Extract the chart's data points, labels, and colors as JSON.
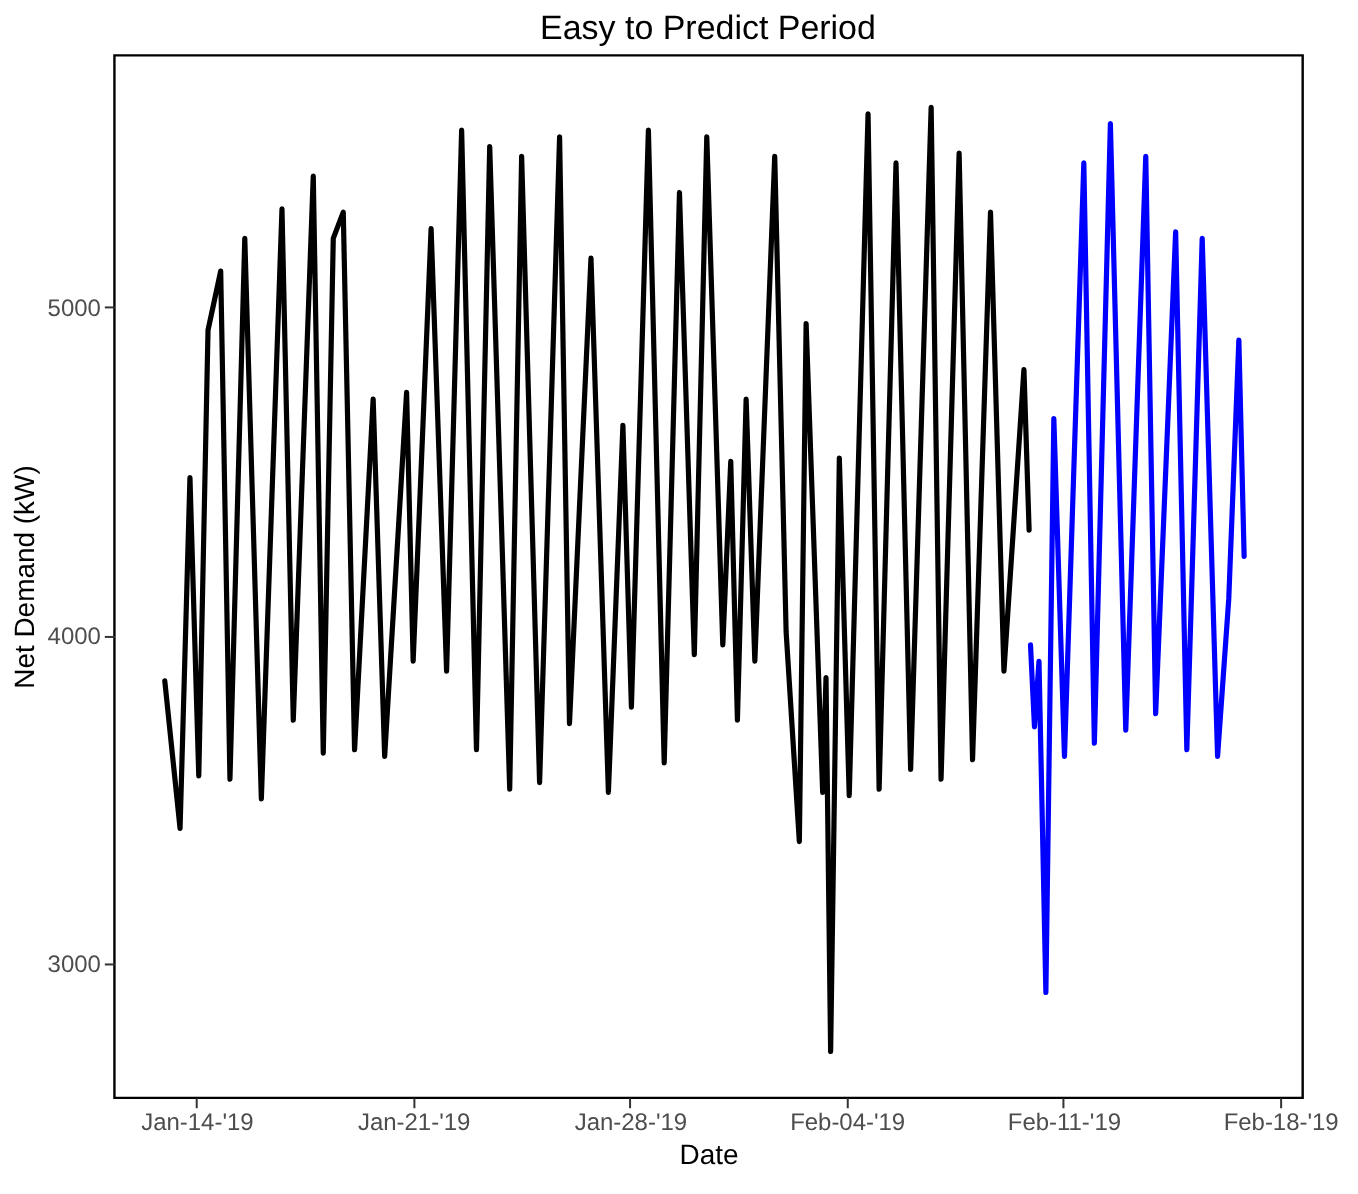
{
  "chart_data": {
    "type": "line",
    "title": "Easy to Predict Period",
    "xlabel": "Date",
    "ylabel": "Net Demand (kW)",
    "xlim": [
      "2019-01-11T08:00",
      "2019-02-18T17:00"
    ],
    "xticks": [
      {
        "value": "2019-01-14",
        "label": "Jan-14-'19"
      },
      {
        "value": "2019-01-21",
        "label": "Jan-21-'19"
      },
      {
        "value": "2019-01-28",
        "label": "Jan-28-'19"
      },
      {
        "value": "2019-02-04",
        "label": "Feb-04-'19"
      },
      {
        "value": "2019-02-11",
        "label": "Feb-11-'19"
      },
      {
        "value": "2019-02-18",
        "label": "Feb-18-'19"
      }
    ],
    "ylim": [
      2590,
      5770
    ],
    "yticks": [
      3000,
      4000,
      5000
    ],
    "grid": false,
    "legend": false,
    "line_style": "solid",
    "marker": "none",
    "series": [
      {
        "color": "#000000",
        "x": [
          "2019-01-12T23:30",
          "2019-01-13T11:20",
          "2019-01-13T19:00",
          "2019-01-14T01:50",
          "2019-01-14T09:00",
          "2019-01-14T18:50",
          "2019-01-15T02:00",
          "2019-01-15T13:30",
          "2019-01-16T02:20",
          "2019-01-16T18:20",
          "2019-01-17T03:05",
          "2019-01-17T18:35",
          "2019-01-18T02:20",
          "2019-01-18T10:05",
          "2019-01-18T17:50",
          "2019-01-19T02:35",
          "2019-01-19T17:00",
          "2019-01-20T01:55",
          "2019-01-20T18:55",
          "2019-01-21T00:00",
          "2019-01-21T13:55",
          "2019-01-22T01:55",
          "2019-01-22T13:35",
          "2019-01-23T01:05",
          "2019-01-23T11:20",
          "2019-01-24T02:50",
          "2019-01-24T12:05",
          "2019-01-25T02:00",
          "2019-01-25T17:30",
          "2019-01-26T01:10",
          "2019-01-26T17:50",
          "2019-01-27T07:20",
          "2019-01-27T18:35",
          "2019-01-28T01:10",
          "2019-01-28T14:20",
          "2019-01-29T02:35",
          "2019-01-29T14:25",
          "2019-01-30T01:55",
          "2019-01-30T11:35",
          "2019-01-31T00:00",
          "2019-01-31T06:10",
          "2019-01-31T11:20",
          "2019-01-31T18:05",
          "2019-02-01T00:50",
          "2019-02-01T16:15",
          "2019-02-02T01:05",
          "2019-02-02T11:20",
          "2019-02-02T16:35",
          "2019-02-03T05:25",
          "2019-02-03T08:00",
          "2019-02-03T11:35",
          "2019-02-03T18:20",
          "2019-02-04T02:00",
          "2019-02-04T16:35",
          "2019-02-05T01:10",
          "2019-02-05T14:15",
          "2019-02-06T01:35",
          "2019-02-06T17:30",
          "2019-02-07T01:10",
          "2019-02-07T15:10",
          "2019-02-08T01:35",
          "2019-02-08T15:30",
          "2019-02-09T01:55",
          "2019-02-09T17:25",
          "2019-02-09T21:25"
        ],
        "values": [
          3860,
          3410,
          4480,
          3570,
          4930,
          5110,
          3560,
          5210,
          3500,
          5300,
          3740,
          5400,
          3640,
          5210,
          5290,
          3650,
          4720,
          3630,
          4740,
          3920,
          5240,
          3890,
          5540,
          3650,
          5490,
          3530,
          5460,
          3550,
          5520,
          3730,
          5150,
          3520,
          4640,
          3780,
          5540,
          3610,
          5350,
          3940,
          5520,
          3970,
          4530,
          3740,
          4720,
          3920,
          5460,
          4010,
          3370,
          4950,
          3520,
          3870,
          2730,
          4540,
          3510,
          5590,
          3530,
          5440,
          3590,
          5610,
          3560,
          5470,
          3620,
          5290,
          3890,
          4810,
          4320
        ]
      },
      {
        "color": "#0000ff",
        "x": [
          "2019-02-09T22:30",
          "2019-02-10T01:35",
          "2019-02-10T05:05",
          "2019-02-10T10:25",
          "2019-02-10T16:35",
          "2019-02-11T00:50",
          "2019-02-11T15:50",
          "2019-02-12T00:00",
          "2019-02-12T12:25",
          "2019-02-13T00:20",
          "2019-02-13T15:50",
          "2019-02-13T23:30",
          "2019-02-14T15:00",
          "2019-02-14T23:40",
          "2019-02-15T11:35",
          "2019-02-15T23:30",
          "2019-02-16T08:10",
          "2019-02-16T16:00",
          "2019-02-16T20:05"
        ],
        "values": [
          3970,
          3720,
          3920,
          2910,
          4660,
          3630,
          5440,
          3670,
          5560,
          3710,
          5460,
          3760,
          5230,
          3650,
          5210,
          3630,
          4110,
          4900,
          4240
        ]
      }
    ]
  }
}
